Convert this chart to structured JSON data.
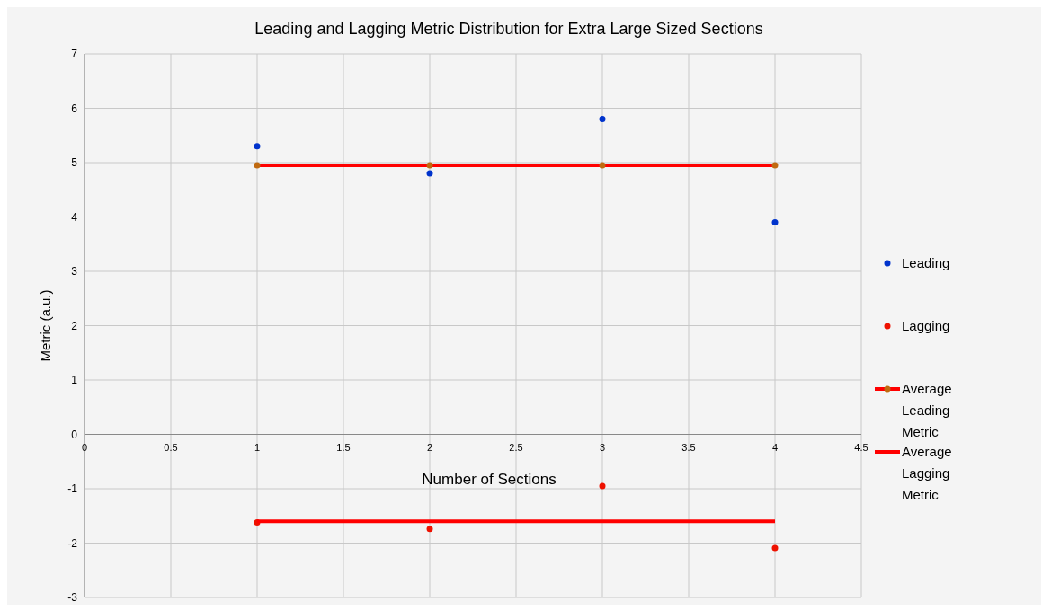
{
  "chart_data": {
    "type": "scatter",
    "title": "Leading and Lagging Metric Distribution for Extra Large Sized Sections",
    "xlabel": "Number of Sections",
    "ylabel": "Metric (a.u.)",
    "xlim": [
      0,
      4.5
    ],
    "xticks": [
      0,
      0.5,
      1,
      1.5,
      2,
      2.5,
      3,
      3.5,
      4,
      4.5
    ],
    "ylim": [
      -3,
      7
    ],
    "yticks": [
      -3,
      -2,
      -1,
      0,
      1,
      2,
      3,
      4,
      5,
      6,
      7
    ],
    "grid": true,
    "legend": "right",
    "series": [
      {
        "name": "Leading",
        "marker": "circle",
        "color": "#0033cc",
        "x": [
          1,
          2,
          3,
          4
        ],
        "values": [
          5.3,
          4.8,
          5.8,
          3.9
        ]
      },
      {
        "name": "Lagging",
        "marker": "circle",
        "color": "#ee1100",
        "x": [
          1,
          2,
          3,
          4
        ],
        "values": [
          -1.62,
          -1.74,
          -0.95,
          -2.09
        ]
      },
      {
        "name": "Average Leading Metric",
        "type": "line",
        "marker": "circle",
        "line_style": "solid",
        "color": "#ff0000",
        "x": [
          1,
          2,
          3,
          4
        ],
        "values": [
          4.95,
          4.95,
          4.95,
          4.95
        ]
      },
      {
        "name": "Average Lagging Metric",
        "type": "line",
        "marker": "none",
        "line_style": "solid",
        "color": "#ff0000",
        "x": [
          1,
          4
        ],
        "values": [
          -1.6,
          -1.6
        ]
      }
    ]
  }
}
